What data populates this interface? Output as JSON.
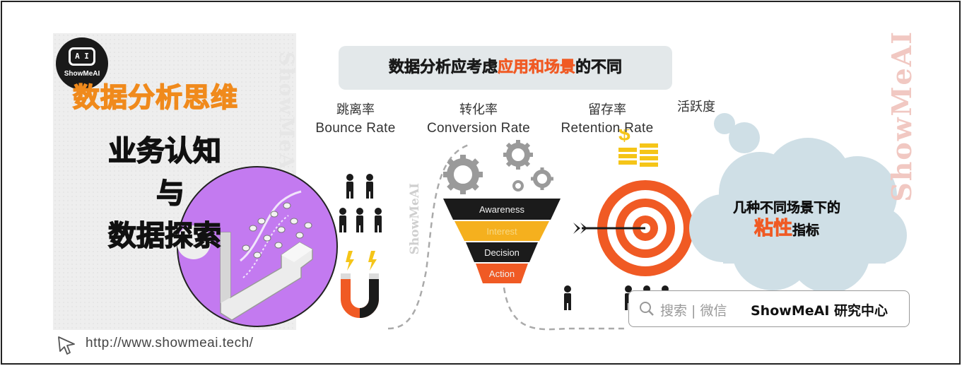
{
  "logo": {
    "screen_text": "A I",
    "brand": "ShowMeAI"
  },
  "title": {
    "main": "数据分析思维",
    "line1": "业务认知",
    "line2": "与",
    "line3": "数据探索"
  },
  "banner": {
    "prefix": "数据分析应考虑",
    "highlight": "应用和场景",
    "suffix": "的不同"
  },
  "metrics": [
    {
      "zh": "跳离率",
      "en": "Bounce Rate"
    },
    {
      "zh": "转化率",
      "en": "Conversion Rate"
    },
    {
      "zh": "留存率",
      "en": "Retention Rate"
    },
    {
      "zh": "活跃度",
      "en": ""
    }
  ],
  "funnel": {
    "stages": [
      "Awareness",
      "Interest",
      "Decision",
      "Action"
    ],
    "colors": [
      "#1b1b1b",
      "#f5b01e",
      "#1b1b1b",
      "#f05a24"
    ]
  },
  "cloud": {
    "line1": "几种不同场景下的",
    "highlight": "粘性",
    "suffix": "指标"
  },
  "search": {
    "icon": "search-icon",
    "hint": "搜索 | 微信",
    "brand": "ShowMeAI 研究中心"
  },
  "watermarks": {
    "brand": "ShowMeAI"
  },
  "url": "http://www.showmeai.tech/",
  "colors": {
    "accent": "#f05a24",
    "orange": "#f08a1c",
    "purple": "#c37af0",
    "yellow": "#f5c518"
  }
}
